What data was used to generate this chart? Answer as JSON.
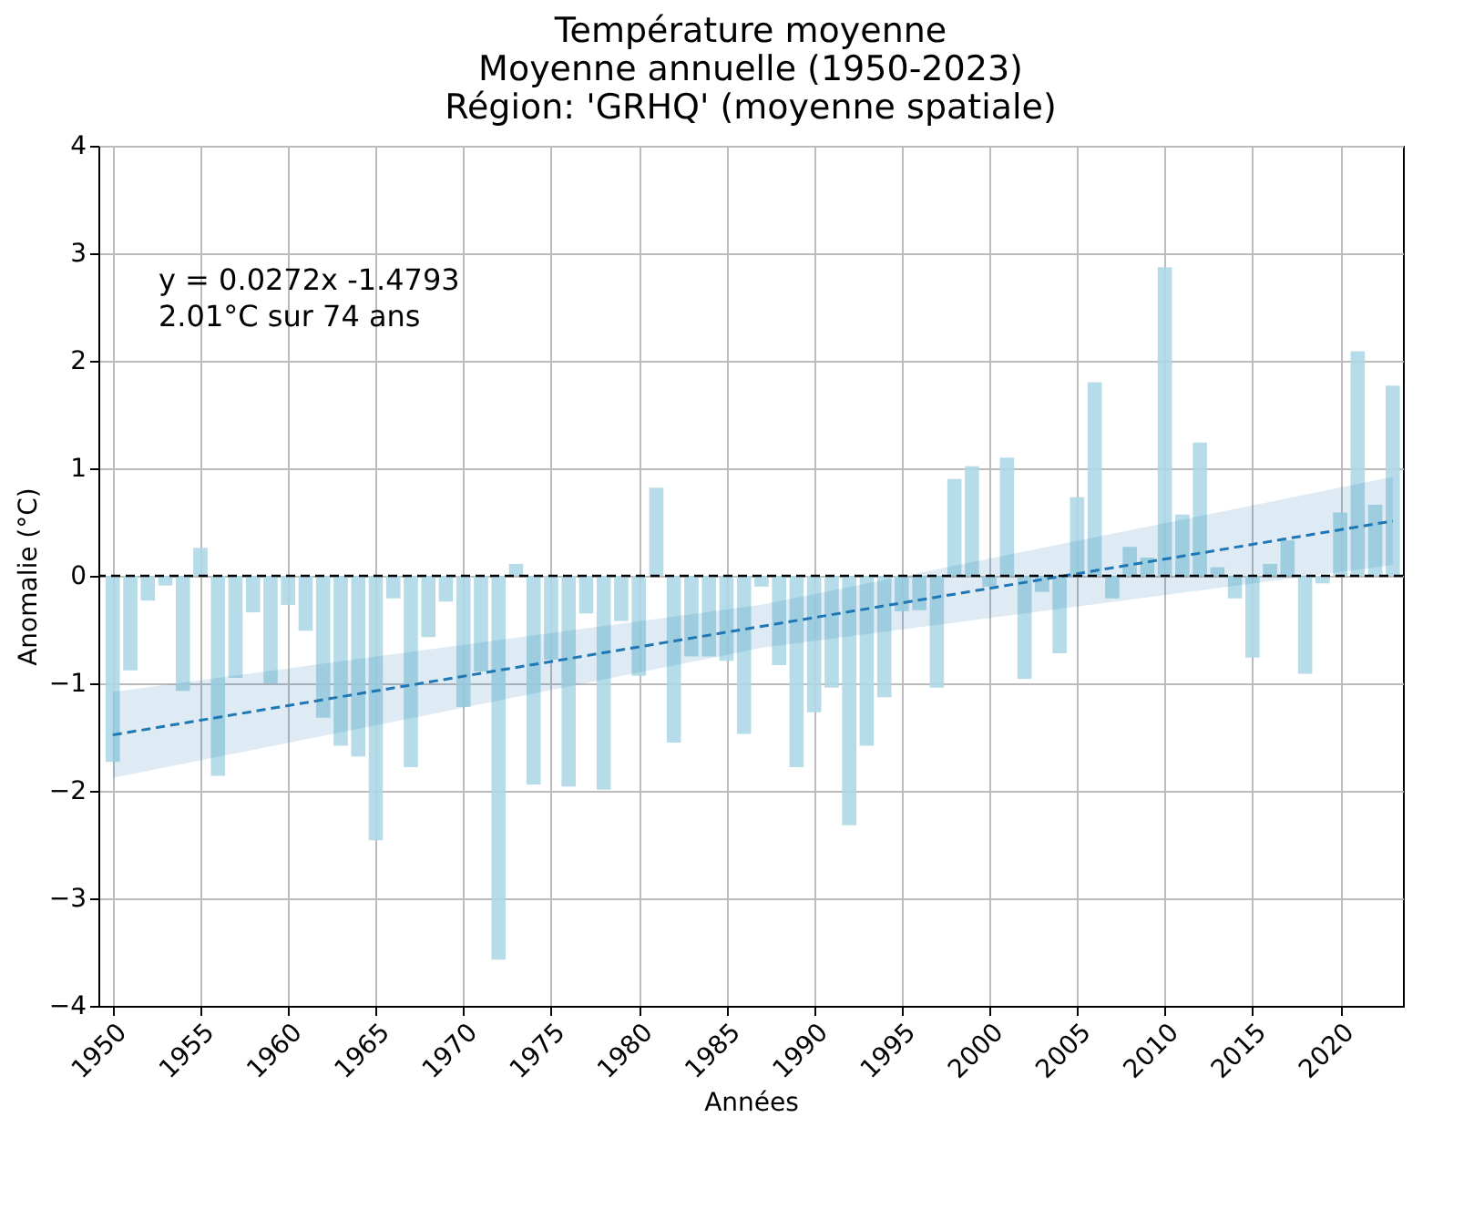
{
  "chart_data": {
    "type": "bar",
    "title": "Température moyenne\nMoyenne annuelle (1950-2023)\nRégion: 'GRHQ' (moyenne spatiale)",
    "xlabel": "Années",
    "ylabel": "Anomalie (°C)",
    "x": [
      1950,
      1951,
      1952,
      1953,
      1954,
      1955,
      1956,
      1957,
      1958,
      1959,
      1960,
      1961,
      1962,
      1963,
      1964,
      1965,
      1966,
      1967,
      1968,
      1969,
      1970,
      1971,
      1972,
      1973,
      1974,
      1975,
      1976,
      1977,
      1978,
      1979,
      1980,
      1981,
      1982,
      1983,
      1984,
      1985,
      1986,
      1987,
      1988,
      1989,
      1990,
      1991,
      1992,
      1993,
      1994,
      1995,
      1996,
      1997,
      1998,
      1999,
      2000,
      2001,
      2002,
      2003,
      2004,
      2005,
      2006,
      2007,
      2008,
      2009,
      2010,
      2011,
      2012,
      2013,
      2014,
      2015,
      2016,
      2017,
      2018,
      2019,
      2020,
      2021,
      2022,
      2023
    ],
    "series": [
      {
        "color": "#add8e6",
        "values": [
          -1.73,
          -0.88,
          -0.23,
          -0.09,
          -1.07,
          0.26,
          -1.86,
          -0.95,
          -0.34,
          -1.0,
          -0.27,
          -0.51,
          -1.32,
          -1.58,
          -1.68,
          -2.46,
          -0.21,
          -1.78,
          -0.57,
          -0.24,
          -1.22,
          -0.89,
          -3.57,
          0.11,
          -1.94,
          -0.78,
          -1.96,
          -0.35,
          -1.99,
          -0.42,
          -0.93,
          0.82,
          -1.55,
          -0.75,
          -0.75,
          -0.79,
          -1.47,
          -0.1,
          -0.83,
          -1.78,
          -1.27,
          -1.04,
          -2.32,
          -1.58,
          -1.13,
          -0.33,
          -0.32,
          -1.04,
          0.9,
          1.02,
          -0.1,
          1.1,
          -0.96,
          -0.15,
          -0.72,
          0.73,
          1.8,
          -0.21,
          0.27,
          0.17,
          2.87,
          0.57,
          1.24,
          0.08,
          -0.21,
          -0.76,
          0.11,
          0.33,
          -0.91,
          -0.07,
          0.59,
          2.09,
          0.66,
          1.77
        ]
      },
      {
        "type": "line",
        "color": "#1f77b4",
        "line_style": "dashed",
        "x": [
          1950,
          1987,
          2023
        ],
        "values": [
          -1.48,
          -0.47,
          0.51
        ],
        "lower": [
          -1.88,
          -0.67,
          0.1
        ],
        "upper": [
          -1.08,
          -0.27,
          0.92
        ]
      }
    ],
    "xlim": [
      1949.7,
      2023.06
    ],
    "xticks": [
      1950,
      1955,
      1960,
      1965,
      1970,
      1975,
      1980,
      1985,
      1990,
      1995,
      2000,
      2005,
      2010,
      2015,
      2020
    ],
    "ylim": [
      -4,
      4
    ],
    "yticks": [
      -4,
      -3,
      -2,
      -1,
      0,
      1,
      2,
      3,
      4
    ],
    "ref_lines": [
      {
        "axis": "y",
        "value": 0,
        "color": "#000000",
        "line_style": "dashed"
      }
    ],
    "annotations": [
      "y = 0.0272x -1.4793",
      "2.01°C sur 74 ans"
    ],
    "grid": true
  }
}
